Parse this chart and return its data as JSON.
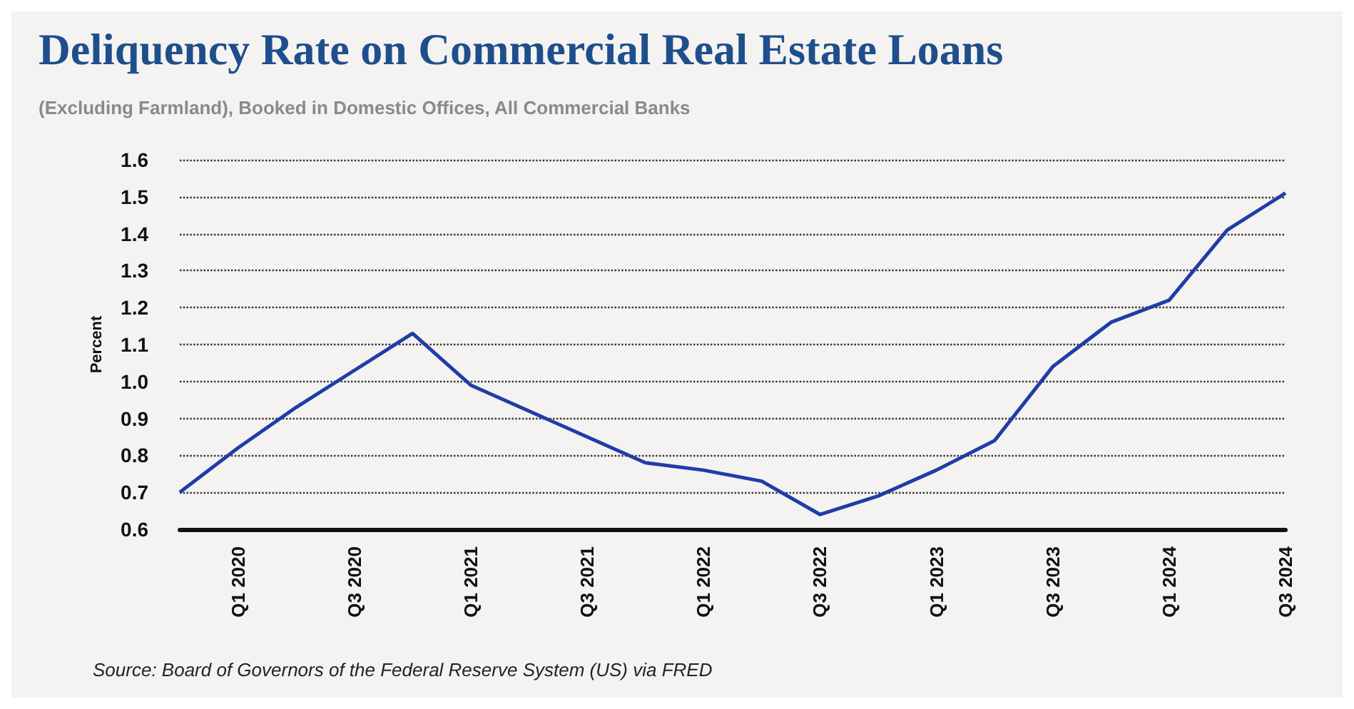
{
  "chart_data": {
    "type": "line",
    "title": "Deliquency Rate on Commercial Real Estate Loans",
    "subtitle": "(Excluding Farmland), Booked in Domestic Offices, All Commercial Banks",
    "ylabel": "Percent",
    "annotations": [
      "Source: Board of Governors of the Federal Reserve System (US) via FRED"
    ],
    "categories": [
      null,
      "Q1 2020",
      null,
      "Q3 2020",
      null,
      "Q1 2021",
      null,
      "Q3 2021",
      null,
      "Q1 2022",
      null,
      "Q3 2022",
      null,
      "Q1 2023",
      null,
      "Q3 2023",
      null,
      "Q1 2024",
      null,
      "Q3 2024"
    ],
    "series": [
      {
        "color": "#1f3da8",
        "values": [
          0.7,
          0.82,
          0.93,
          1.03,
          1.13,
          0.99,
          0.92,
          0.85,
          0.78,
          0.76,
          0.73,
          0.64,
          0.69,
          0.76,
          0.84,
          1.04,
          1.16,
          1.22,
          1.41,
          1.51
        ]
      }
    ],
    "ylim": [
      0.6,
      1.6
    ],
    "yticks": [
      {
        "value": 0.6,
        "label": "0.6"
      },
      {
        "value": 0.7,
        "label": "0.7"
      },
      {
        "value": 0.8,
        "label": "0.8"
      },
      {
        "value": 0.9,
        "label": "0.9"
      },
      {
        "value": 1.0,
        "label": "1.0"
      },
      {
        "value": 1.1,
        "label": "1.1"
      },
      {
        "value": 1.2,
        "label": "1.2"
      },
      {
        "value": 1.3,
        "label": "1.3"
      },
      {
        "value": 1.4,
        "label": "1.4"
      },
      {
        "value": 1.5,
        "label": "1.5"
      },
      {
        "value": 1.6,
        "label": "1.6"
      }
    ],
    "grid": "y",
    "marker": "none",
    "line_style": "solid"
  }
}
